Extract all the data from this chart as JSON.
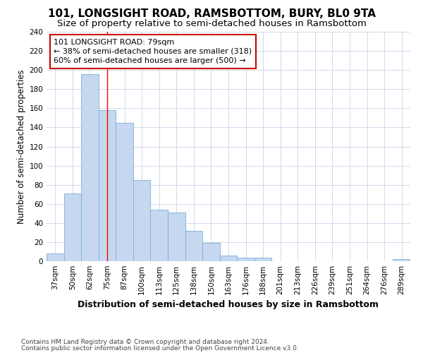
{
  "title": "101, LONGSIGHT ROAD, RAMSBOTTOM, BURY, BL0 9TA",
  "subtitle": "Size of property relative to semi-detached houses in Ramsbottom",
  "xlabel": "Distribution of semi-detached houses by size in Ramsbottom",
  "ylabel": "Number of semi-detached properties",
  "footnote1": "Contains HM Land Registry data © Crown copyright and database right 2024.",
  "footnote2": "Contains public sector information licensed under the Open Government Licence v3.0.",
  "categories": [
    "37sqm",
    "50sqm",
    "62sqm",
    "75sqm",
    "87sqm",
    "100sqm",
    "113sqm",
    "125sqm",
    "138sqm",
    "150sqm",
    "163sqm",
    "176sqm",
    "188sqm",
    "201sqm",
    "213sqm",
    "226sqm",
    "239sqm",
    "251sqm",
    "264sqm",
    "276sqm",
    "289sqm"
  ],
  "values": [
    8,
    71,
    196,
    158,
    145,
    85,
    54,
    51,
    32,
    19,
    6,
    4,
    4,
    0,
    0,
    0,
    0,
    0,
    0,
    0,
    2
  ],
  "bar_color": "#c5d8f0",
  "bar_edge_color": "#7bafd4",
  "grid_color": "#c8d4e8",
  "annotation_line1": "101 LONGSIGHT ROAD: 79sqm",
  "annotation_line2": "← 38% of semi-detached houses are smaller (318)",
  "annotation_line3": "60% of semi-detached houses are larger (500) →",
  "annotation_box_color": "#ffffff",
  "annotation_box_edge": "#cc0000",
  "redline_x": 3.0,
  "title_fontsize": 11,
  "subtitle_fontsize": 9.5,
  "ylabel_fontsize": 8.5,
  "xlabel_fontsize": 9,
  "tick_fontsize": 7.5,
  "annotation_fontsize": 8,
  "footnote_fontsize": 6.5,
  "background_color": "#ffffff"
}
